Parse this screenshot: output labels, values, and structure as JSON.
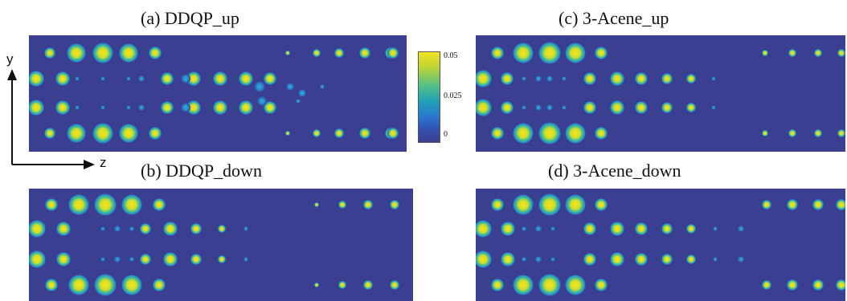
{
  "panels": [
    {
      "id": "a",
      "title": "(a) DDQP_up"
    },
    {
      "id": "b",
      "title": "(b) DDQP_down"
    },
    {
      "id": "c",
      "title": "(c) 3-Acene_up"
    },
    {
      "id": "d",
      "title": "(d) 3-Acene_down"
    }
  ],
  "axes": {
    "y_label": "y",
    "z_label": "z"
  },
  "colorbar": {
    "max": "0.05",
    "mid": "0.025",
    "min": "0"
  },
  "colors": {
    "background": "#3b3f91",
    "high": "#f4e31e",
    "low": "#2d8ad8"
  }
}
